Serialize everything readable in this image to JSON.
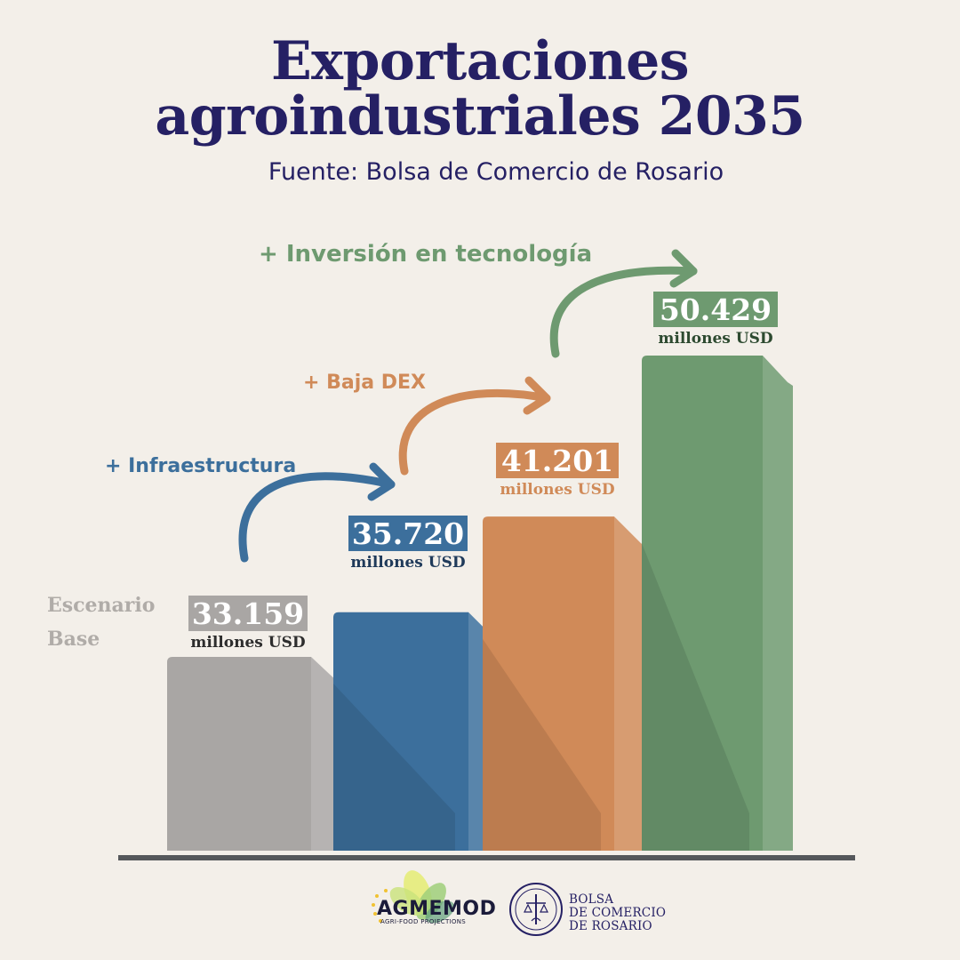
{
  "header": {
    "title_line1": "Exportaciones",
    "title_line2": "agroindustriales 2035",
    "subtitle": "Fuente: Bolsa de Comercio de Rosario"
  },
  "chart_data": {
    "type": "bar",
    "categories": [
      "Escenario Base",
      "+ Infraestructura",
      "+ Baja DEX",
      "+ Inversión en tecnología"
    ],
    "values": [
      33159,
      35720,
      41201,
      50429
    ],
    "value_labels": [
      "33.159",
      "35.720",
      "41.201",
      "50.429"
    ],
    "unit_label": "millones USD",
    "category_labels": {
      "base_line1": "Escenario",
      "base_line2": "Base"
    },
    "colors": {
      "base": "#a9a6a4",
      "infraestructura": "#3c6f9c",
      "baja_dex": "#d08a58",
      "tecnologia": "#6e9a70"
    }
  },
  "footer": {
    "agmemod": "AGMEMOD",
    "agmemod_sub": "AGRI-FOOD PROJECTIONS",
    "bcr_line1": "BOLSA",
    "bcr_line2": "DE COMERCIO",
    "bcr_line3": "DE ROSARIO"
  }
}
